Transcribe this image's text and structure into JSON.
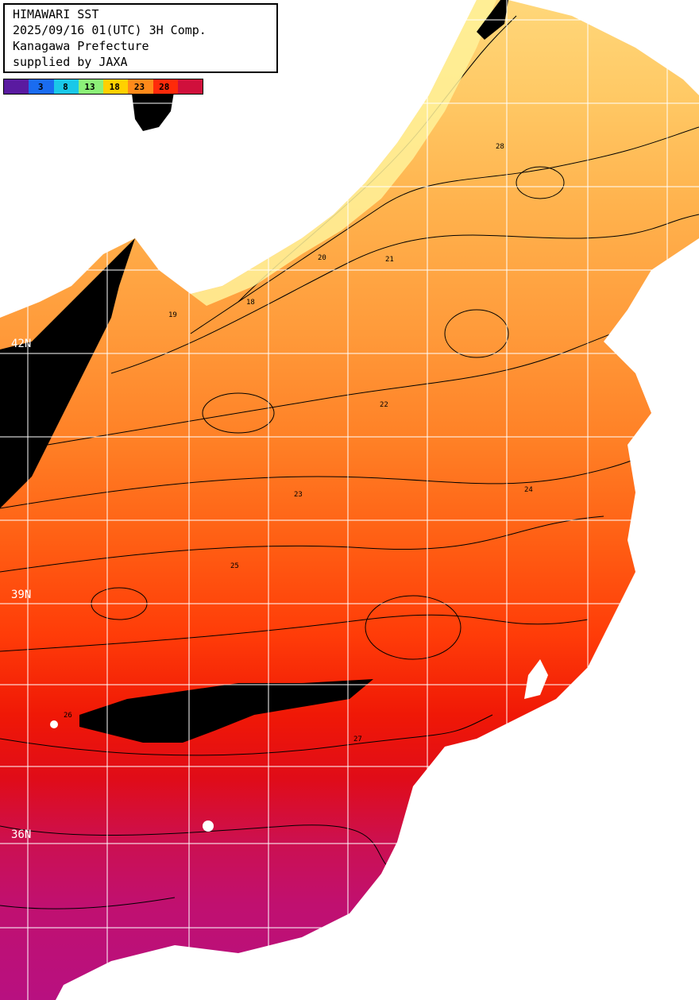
{
  "title": {
    "line1": "HIMAWARI SST",
    "line2": "2025/09/16 01(UTC) 3H Comp.",
    "line3": "Kanagawa Prefecture",
    "line4": "supplied by JAXA"
  },
  "colorbar": {
    "ticks": [
      "3",
      "8",
      "13",
      "18",
      "23",
      "28"
    ],
    "colors": [
      "#5a1aa0",
      "#1a6cf0",
      "#1ac8e8",
      "#8cf078",
      "#ffd000",
      "#ff8a1a",
      "#ff2a0a",
      "#d0103c"
    ]
  },
  "lat_labels": [
    "42N",
    "39N",
    "36N"
  ],
  "contour_labels": [
    "18",
    "19",
    "20",
    "21",
    "22",
    "23",
    "24",
    "25",
    "26",
    "27",
    "28"
  ],
  "colors": {
    "land": "#ffffff",
    "cloud": "#000000",
    "grid": "#ffffff"
  }
}
